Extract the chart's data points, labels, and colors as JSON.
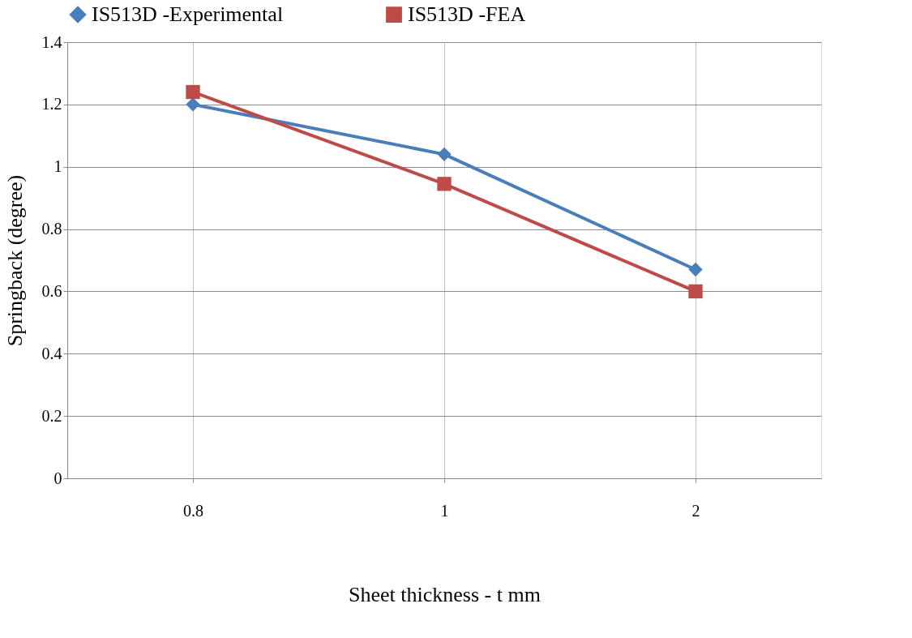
{
  "chart_data": {
    "type": "line",
    "xlabel": "Sheet thickness - t mm",
    "ylabel": "Springback  (degree)",
    "categories": [
      "0.8",
      "1",
      "2"
    ],
    "series": [
      {
        "name": "IS513D -Experimental",
        "color": "#4a7ebb",
        "marker": "diamond",
        "values": [
          1.2,
          1.04,
          0.67
        ]
      },
      {
        "name": "IS513D -FEA",
        "color": "#be4b48",
        "marker": "square",
        "values": [
          1.24,
          0.945,
          0.6
        ]
      }
    ],
    "ylim": [
      0,
      1.4
    ],
    "yticks": [
      0,
      0.2,
      0.4,
      0.6,
      0.8,
      1,
      1.2,
      1.4
    ],
    "grid": true,
    "legend": "top",
    "line_style": "solid"
  }
}
